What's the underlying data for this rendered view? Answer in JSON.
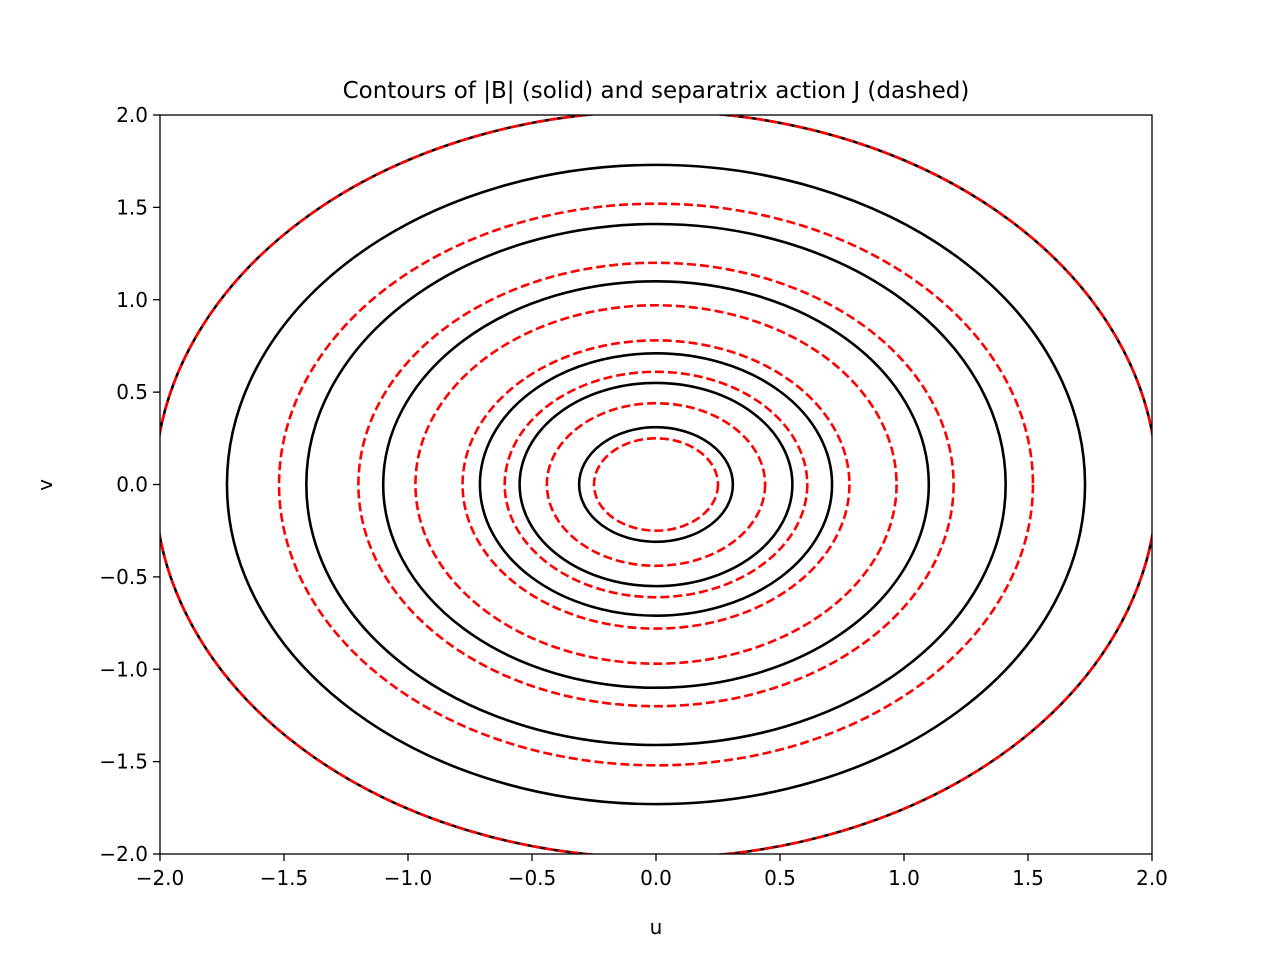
{
  "chart_data": {
    "type": "contour",
    "title": "Contours of |B| (solid) and separatrix action J (dashed)",
    "xlabel": "u",
    "ylabel": "v",
    "xlim": [
      -2.0,
      2.0
    ],
    "ylim": [
      -2.0,
      2.0
    ],
    "x_ticks": [
      "−2.0",
      "−1.5",
      "−1.0",
      "−0.5",
      "0.0",
      "0.5",
      "1.0",
      "1.5",
      "2.0"
    ],
    "y_ticks": [
      "−2.0",
      "−1.5",
      "−1.0",
      "−0.5",
      "0.0",
      "0.5",
      "1.0",
      "1.5",
      "2.0"
    ],
    "x_tick_values": [
      -2.0,
      -1.5,
      -1.0,
      -0.5,
      0.0,
      0.5,
      1.0,
      1.5,
      2.0
    ],
    "y_tick_values": [
      -2.0,
      -1.5,
      -1.0,
      -0.5,
      0.0,
      0.5,
      1.0,
      1.5,
      2.0
    ],
    "grid": false,
    "series": [
      {
        "style": "solid",
        "color": "#000000",
        "contour_radii": [
          0.31,
          0.55,
          0.71,
          1.1,
          1.41,
          1.73,
          2.02
        ]
      },
      {
        "style": "dashed",
        "color": "#ff0000",
        "contour_radii": [
          0.25,
          0.44,
          0.61,
          0.78,
          0.97,
          1.2,
          1.52,
          2.02
        ]
      }
    ]
  }
}
